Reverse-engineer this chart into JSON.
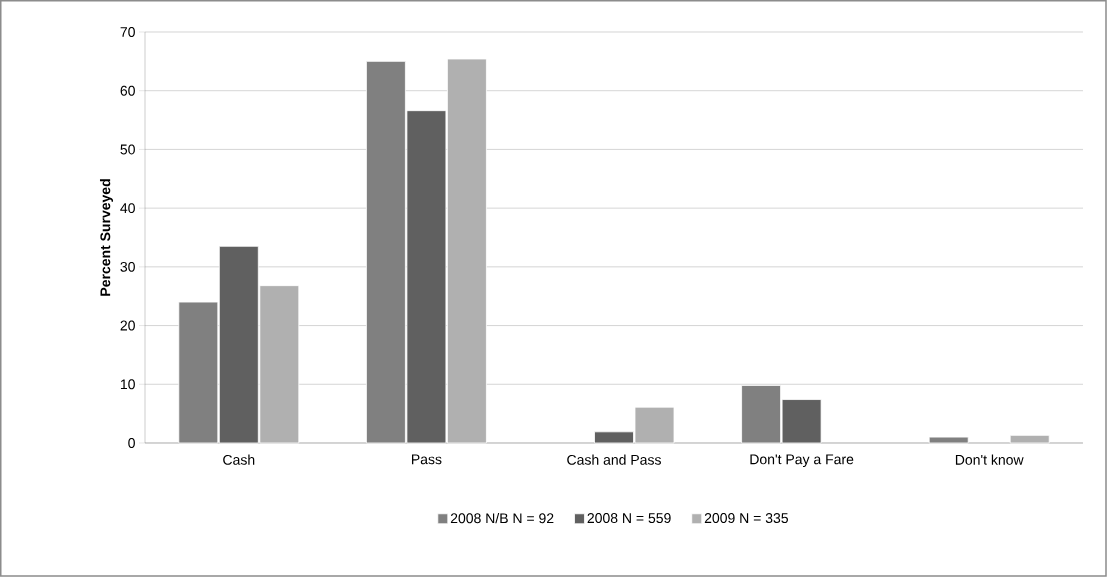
{
  "chart_data": {
    "type": "bar",
    "ylabel": "Percent Surveyed",
    "categories": [
      "Cash",
      "Pass",
      "Cash and Pass",
      "Don't Pay a Fare",
      "Don't know"
    ],
    "series": [
      {
        "name": "2008 N/B N = 92",
        "color": "#808080",
        "values": [
          24.0,
          65.0,
          null,
          9.8,
          1.0
        ]
      },
      {
        "name": "2008 N = 559",
        "color": "#606060",
        "values": [
          33.5,
          56.6,
          1.9,
          7.4,
          null
        ]
      },
      {
        "name": "2009 N = 335",
        "color": "#b0b0b0",
        "values": [
          26.8,
          65.4,
          6.1,
          null,
          1.3
        ]
      }
    ],
    "ylim": [
      0,
      70
    ],
    "yticks": [
      0,
      10,
      20,
      30,
      40,
      50,
      60,
      70
    ],
    "grid": "y",
    "legend": "bottom"
  }
}
